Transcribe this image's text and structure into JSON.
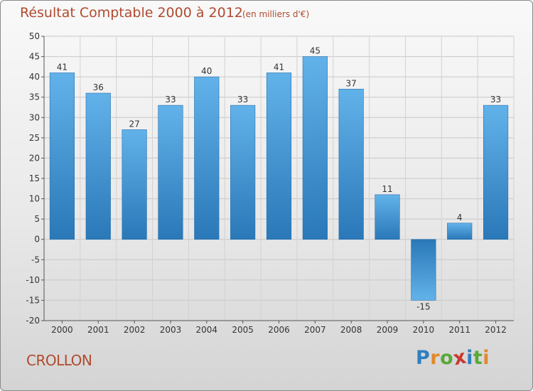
{
  "title": "Résultat Comptable 2000 à 2012",
  "subtitle": "(en milliers d'€)",
  "commune": "CROLLON",
  "brand": {
    "letters": [
      "P",
      "r",
      "o",
      "x",
      "i",
      "t",
      "i"
    ],
    "colors": [
      "#2f7fc1",
      "#e0892b",
      "#5aa83a",
      "#c9382e",
      "#2f7fc1",
      "#5aa83a",
      "#e0892b"
    ]
  },
  "chart_data": {
    "type": "bar",
    "title": "Résultat Comptable 2000 à 2012",
    "subtitle": "(en milliers d'€)",
    "xlabel": "",
    "ylabel": "",
    "categories": [
      "2000",
      "2001",
      "2002",
      "2003",
      "2004",
      "2005",
      "2006",
      "2007",
      "2008",
      "2009",
      "2010",
      "2011",
      "2012"
    ],
    "values": [
      41,
      36,
      27,
      33,
      40,
      33,
      41,
      45,
      37,
      11,
      -15,
      4,
      33
    ],
    "labels": [
      "41",
      "36",
      "27",
      "33",
      "40",
      "33",
      "41",
      "45",
      "37",
      "11",
      "-15",
      "4",
      "33"
    ],
    "ylim": [
      -20,
      50
    ],
    "yticks": [
      50,
      45,
      40,
      35,
      30,
      25,
      20,
      15,
      10,
      5,
      0,
      -5,
      -10,
      -15,
      -20
    ],
    "ytick_labels": [
      "50",
      "45",
      "40",
      "35",
      "30",
      "25",
      "20",
      "15",
      "10",
      "5",
      "0",
      "-5",
      "-10",
      "-15",
      "-20"
    ],
    "grid": true,
    "bar_color": "#3d8fd1"
  }
}
